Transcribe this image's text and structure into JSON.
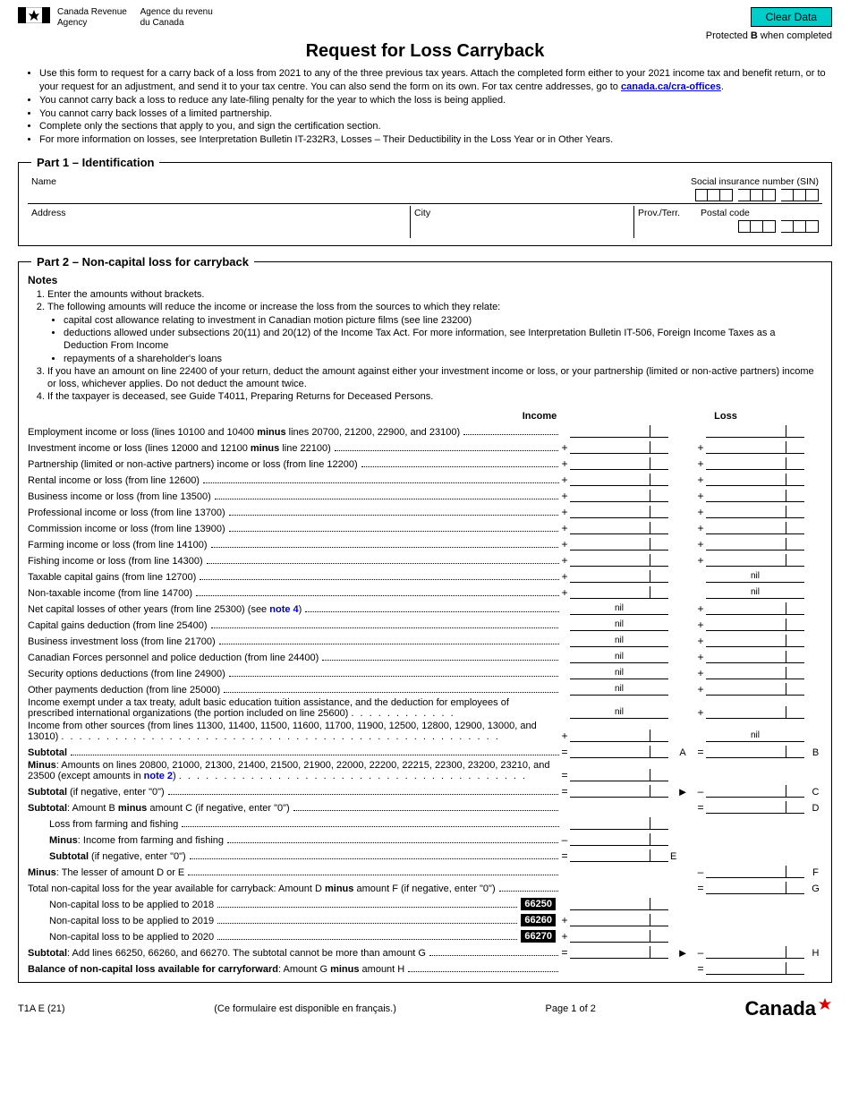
{
  "buttons": {
    "clear": "Clear Data"
  },
  "protected": {
    "prefix": "Protected ",
    "letter": "B",
    "suffix": " when completed"
  },
  "agency": {
    "en1": "Canada Revenue",
    "en2": "Agency",
    "fr1": "Agence du revenu",
    "fr2": "du Canada"
  },
  "title": "Request for Loss Carryback",
  "intro": {
    "b1a": "Use this form to request for a carry back of a loss from 2021 to any of the three previous tax years. Attach the completed form either to your 2021 income tax and benefit return, or to your request for an adjustment, and send it to your tax centre. You can also send the form on its own. For tax centre addresses, go to ",
    "b1link": "canada.ca/cra-offices",
    "b1b": ".",
    "b2": "You cannot carry back a loss to reduce any late-filing penalty for the year to which the loss is being applied.",
    "b3": "You cannot carry back losses of a limited partnership.",
    "b4": "Complete only the sections that apply to you, and sign the certification section.",
    "b5": "For more information on losses, see Interpretation Bulletin IT-232R3, Losses – Their Deductibility in the Loss Year or in Other Years."
  },
  "part1": {
    "legend": "Part 1 – Identification",
    "name": "Name",
    "sin": "Social insurance number (SIN)",
    "address": "Address",
    "city": "City",
    "prov": "Prov./Terr.",
    "postal": "Postal code"
  },
  "part2": {
    "legend": "Part 2 – Non-capital loss for carryback",
    "notes_title": "Notes",
    "n1": "Enter the amounts without brackets.",
    "n2": "The following amounts will reduce the income or increase the loss from the sources to which they relate:",
    "n2a": "capital cost allowance relating to investment in Canadian motion picture films (see line 23200)",
    "n2b": "deductions allowed under subsections 20(11) and 20(12) of the Income Tax Act. For more information, see Interpretation Bulletin IT-506, Foreign Income Taxes as a Deduction From Income",
    "n2c": "repayments of a shareholder's loans",
    "n3": "If you have an amount on line 22400 of your return, deduct the amount against either your investment income or loss, or your partnership (limited or non-active partners) income or loss, whichever applies. Do not deduct the amount twice.",
    "n4": "If the taxpayer is deceased, see Guide T4011, Preparing Returns for Deceased Persons.",
    "col_income": "Income",
    "col_loss": "Loss",
    "lines": {
      "l1a": "Employment income or loss (lines 10100 and 10400 ",
      "l1b": "minus",
      "l1c": " lines 20700, 21200, 22900, and 23100)",
      "l2a": "Investment income or loss (lines 12000 and 12100 ",
      "l2b": "minus",
      "l2c": " line 22100)",
      "l3": "Partnership (limited or non-active partners) income or loss (from line 12200)",
      "l4": "Rental income or loss (from line 12600)",
      "l5": "Business income or loss (from line 13500)",
      "l6": "Professional income or loss (from line 13700)",
      "l7": "Commission income or loss (from line 13900)",
      "l8": "Farming income or loss (from line 14100)",
      "l9": "Fishing income or loss (from line 14300)",
      "l10": "Taxable capital gains (from line 12700)",
      "l11": "Non-taxable income (from line 14700)",
      "l12a": "Net capital losses of other years (from line 25300) (see ",
      "l12b": "note 4",
      "l12c": ")",
      "l13": "Capital gains deduction (from line 25400)",
      "l14": "Business investment loss (from line 21700)",
      "l15": "Canadian Forces personnel and police deduction (from line 24400)",
      "l16": "Security options deductions (from line 24900)",
      "l17": "Other payments deduction (from line 25000)",
      "l18": "Income exempt under a tax treaty, adult basic education tuition assistance, and the deduction for employees of prescribed international organizations (the portion included on line 25600)",
      "l19": "Income from other sources (from lines 11300, 11400, 11500, 11600, 11700, 11900, 12500, 12800, 12900, 13000, and 13010)",
      "subtotal": "Subtotal",
      "minusAa": "Minus",
      "minusAb": ": Amounts on lines 20800, 21000, 21300, 21400, 21500, 21900, 22000, 22200, 22215, 22300, 23200, 23210, and 23500 (except amounts in ",
      "minusAc": "note 2",
      "minusAd": ")",
      "sub0": " (if negative, enter \"0\")",
      "subBC": ": Amount B ",
      "subBC2": "minus",
      "subBC3": " amount C (if negative, enter \"0\")",
      "ff1": "Loss from farming and fishing",
      "ff2a": "Minus",
      "ff2b": ": Income from farming and fishing",
      "minusDE": ": The lesser of amount D or E",
      "totalG": "Total non-capital loss for the year available for carryback: Amount D ",
      "totalG2": "minus",
      "totalG3": " amount F (if negative, enter \"0\")",
      "nc2018": "Non-capital loss to be applied to 2018",
      "nc2019": "Non-capital loss to be applied to 2019",
      "nc2020": "Non-capital loss to be applied to 2020",
      "subH": ": Add lines 66250, 66260, and 66270. The subtotal cannot be more than amount G",
      "balance": "Balance of non-capital loss available for carryforward",
      "balance2": ": Amount G ",
      "balance3": "minus",
      "balance4": " amount H"
    },
    "codes": {
      "c2018": "66250",
      "c2019": "66260",
      "c2020": "66270"
    },
    "letters": {
      "A": "A",
      "B": "B",
      "C": "C",
      "D": "D",
      "E": "E",
      "F": "F",
      "G": "G",
      "H": "H"
    },
    "nil": "nil"
  },
  "footer": {
    "form_id": "T1A E (21)",
    "fr_note": "(Ce formulaire est disponible en français.)",
    "page": "Page 1 of 2",
    "wordmark": "Canada"
  },
  "colors": {
    "clear_btn": "#00cccc",
    "link": "#0000cc"
  }
}
